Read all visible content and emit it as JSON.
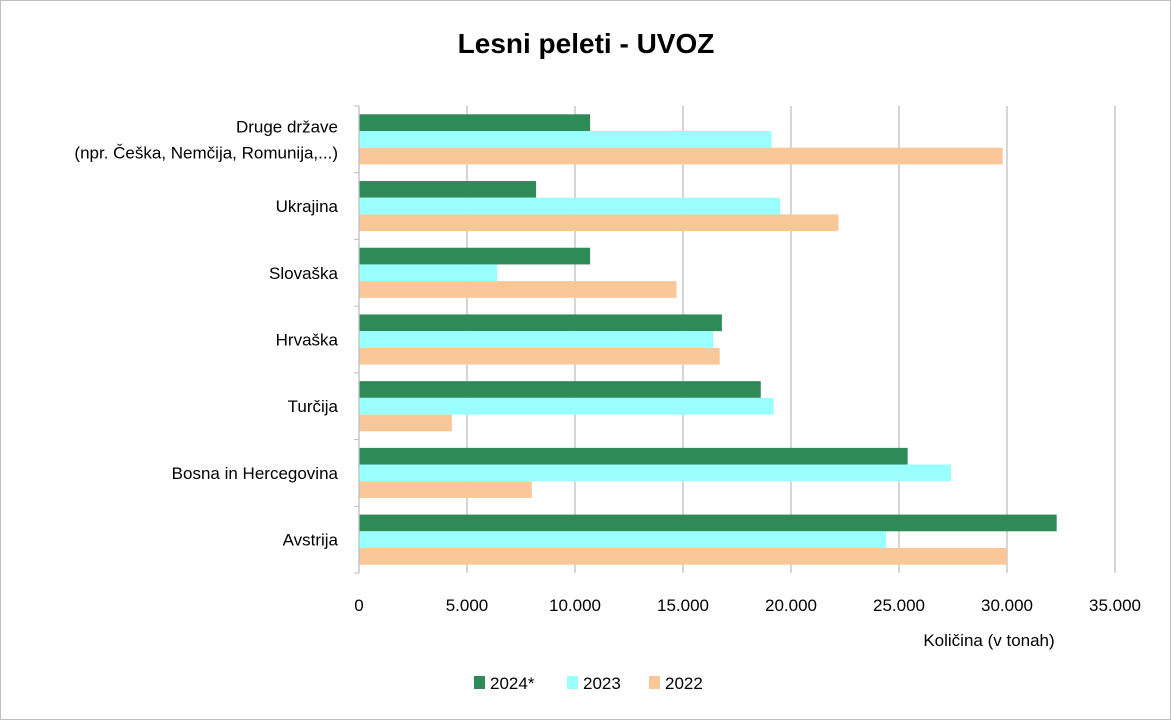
{
  "chart_data": {
    "type": "bar",
    "orientation": "horizontal",
    "title": "Lesni peleti - UVOZ",
    "xlabel": "Količina (v tonah)",
    "ylabel": "",
    "xlim": [
      0,
      35000
    ],
    "x_ticks": [
      0,
      5000,
      10000,
      15000,
      20000,
      25000,
      30000,
      35000
    ],
    "x_tick_labels": [
      "0",
      "5.000",
      "10.000",
      "15.000",
      "20.000",
      "25.000",
      "30.000",
      "35.000"
    ],
    "grid": true,
    "legend_position": "bottom",
    "categories": [
      [
        "Druge države",
        "(npr. Češka, Nemčija, Romunija,...)"
      ],
      [
        "Ukrajina"
      ],
      [
        "Slovaška"
      ],
      [
        "Hrvaška"
      ],
      [
        "Turčija"
      ],
      [
        "Bosna in Hercegovina"
      ],
      [
        "Avstrija"
      ]
    ],
    "series": [
      {
        "name": "2024*",
        "color": "#2e8b57",
        "values": [
          10700,
          8200,
          10700,
          16800,
          18600,
          25400,
          32300
        ]
      },
      {
        "name": "2023",
        "color": "#99ffff",
        "values": [
          19100,
          19500,
          6400,
          16400,
          19200,
          27400,
          24400
        ]
      },
      {
        "name": "2022",
        "color": "#fac898",
        "values": [
          29800,
          22200,
          14700,
          16700,
          4300,
          8000,
          30000
        ]
      }
    ]
  }
}
